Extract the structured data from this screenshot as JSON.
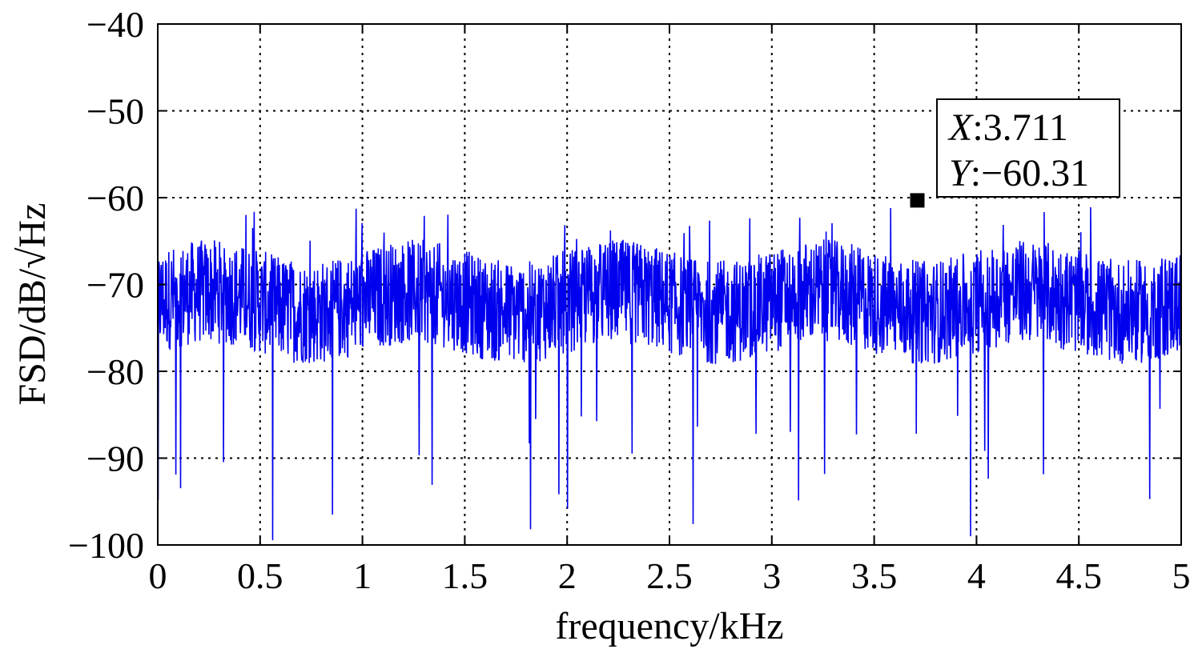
{
  "chart_data": {
    "type": "line",
    "xlabel": "frequency/kHz",
    "ylabel": "FSD/dB/√Hz",
    "xlim": [
      0,
      5
    ],
    "ylim": [
      -100,
      -40
    ],
    "x_ticks": [
      "0",
      "0.5",
      "1",
      "1.5",
      "2",
      "2.5",
      "3",
      "3.5",
      "4",
      "4.5",
      "5"
    ],
    "y_ticks": [
      "−40",
      "−50",
      "−60",
      "−70",
      "−80",
      "−90",
      "−100"
    ],
    "grid": true,
    "series": [
      {
        "color": "#0000ee",
        "description_points": "noise floor spectrum, 0–5 kHz",
        "baseline_mean": -72,
        "band_upper_typical": -66,
        "band_lower_typical": -80,
        "peaks_max": -60.3,
        "dips_min": -100
      }
    ],
    "datatip": {
      "x_label": "X",
      "x_value": ":3.711",
      "y_label": "Y",
      "y_value": ":−60.31",
      "x": 3.711,
      "y": -60.31
    }
  }
}
